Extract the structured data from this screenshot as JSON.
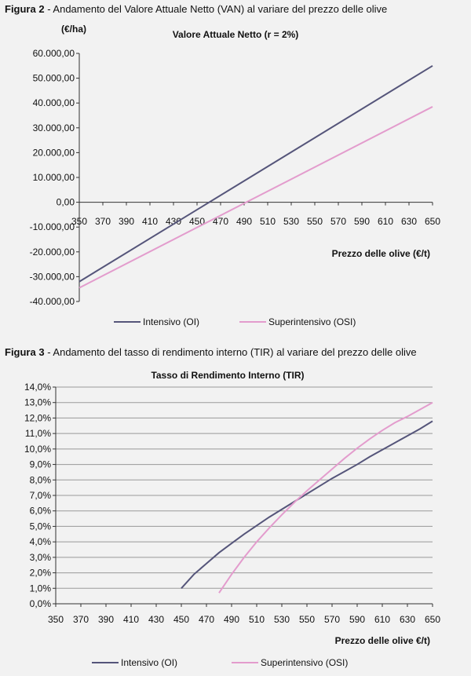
{
  "figures": [
    {
      "caption_label": "Figura 2",
      "caption_text": " - Andamento del Valore Attuale Netto (VAN) al variare del prezzo delle olive"
    },
    {
      "caption_label": "Figura 3",
      "caption_text": " - Andamento del tasso di rendimento interno (TIR) al variare del prezzo delle olive"
    }
  ],
  "chart_data": [
    {
      "type": "line",
      "title": "Valore Attuale Netto (r = 2%)",
      "ylabel": "(€/ha)",
      "xlabel": "Prezzo delle olive (€/t)",
      "x_ticks": [
        "350",
        "370",
        "390",
        "410",
        "430",
        "450",
        "470",
        "490",
        "510",
        "530",
        "550",
        "570",
        "590",
        "610",
        "630",
        "650"
      ],
      "y_ticks": [
        "60.000,00",
        "50.000,00",
        "40.000,00",
        "30.000,00",
        "20.000,00",
        "10.000,00",
        "0,00",
        "-10.000,00",
        "-20.000,00",
        "-30.000,00",
        "-40.000,00"
      ],
      "xlim": [
        350,
        650
      ],
      "ylim": [
        -40000,
        60000
      ],
      "grid": false,
      "legend_position": "bottom",
      "series": [
        {
          "name": "Intensivo (OI)",
          "color": "#55557a",
          "x": [
            350,
            650
          ],
          "y": [
            -32000,
            55000
          ]
        },
        {
          "name": "Superintensivo (OSI)",
          "color": "#e39ccd",
          "x": [
            350,
            650
          ],
          "y": [
            -34500,
            38500
          ]
        }
      ]
    },
    {
      "type": "line",
      "title": "Tasso di Rendimento Interno (TIR)",
      "xlabel": "Prezzo delle olive  €/t)",
      "x_ticks": [
        "350",
        "370",
        "390",
        "410",
        "430",
        "450",
        "470",
        "490",
        "510",
        "530",
        "550",
        "570",
        "590",
        "610",
        "630",
        "650"
      ],
      "y_ticks": [
        "14,0%",
        "13,0%",
        "12,0%",
        "11,0%",
        "10,0%",
        "9,0%",
        "8,0%",
        "7,0%",
        "6,0%",
        "5,0%",
        "4,0%",
        "3,0%",
        "2,0%",
        "1,0%",
        "0,0%"
      ],
      "xlim": [
        350,
        650
      ],
      "ylim": [
        0,
        14
      ],
      "grid": true,
      "legend_position": "bottom",
      "series": [
        {
          "name": "Intensivo (OI)",
          "color": "#55557a",
          "x": [
            450,
            460,
            470,
            480,
            490,
            500,
            510,
            520,
            530,
            540,
            550,
            560,
            570,
            580,
            590,
            600,
            610,
            620,
            630,
            640,
            650
          ],
          "y": [
            1.0,
            1.9,
            2.6,
            3.3,
            3.9,
            4.5,
            5.05,
            5.6,
            6.1,
            6.6,
            7.1,
            7.6,
            8.1,
            8.55,
            9.0,
            9.5,
            9.95,
            10.4,
            10.85,
            11.3,
            11.8
          ]
        },
        {
          "name": "Superintensivo (OSI)",
          "color": "#e39ccd",
          "x": [
            480,
            490,
            500,
            510,
            520,
            530,
            540,
            550,
            560,
            570,
            580,
            590,
            600,
            610,
            620,
            630,
            640,
            650
          ],
          "y": [
            0.7,
            1.9,
            3.0,
            4.0,
            4.9,
            5.75,
            6.55,
            7.3,
            8.0,
            8.7,
            9.4,
            10.05,
            10.65,
            11.2,
            11.7,
            12.1,
            12.55,
            13.0
          ]
        }
      ]
    }
  ]
}
